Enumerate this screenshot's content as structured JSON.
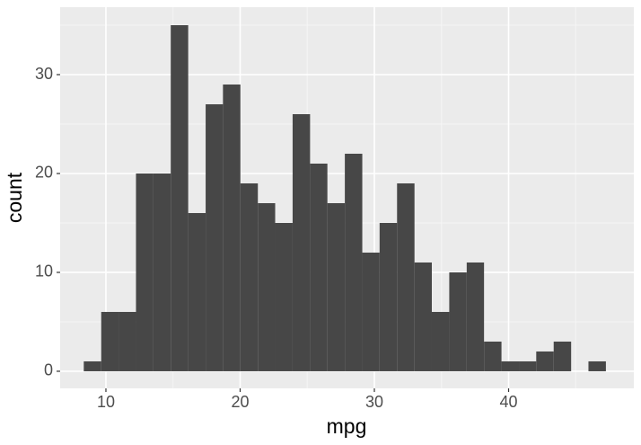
{
  "chart_data": {
    "type": "histogram",
    "x_label": "mpg",
    "y_label": "count",
    "bins": [
      8.35,
      9.65,
      10.94,
      12.24,
      13.54,
      14.83,
      16.13,
      17.43,
      18.72,
      20.02,
      21.32,
      22.61,
      23.91,
      25.21,
      26.5,
      27.8,
      29.1,
      30.39,
      31.69,
      32.99,
      34.28,
      35.58,
      36.88,
      38.17,
      39.47,
      40.77,
      42.06,
      43.36,
      44.66,
      45.95,
      47.25
    ],
    "values": [
      1,
      6,
      6,
      20,
      20,
      35,
      16,
      27,
      29,
      19,
      17,
      15,
      26,
      21,
      17,
      22,
      12,
      15,
      19,
      11,
      6,
      10,
      11,
      3,
      1,
      1,
      2,
      3,
      0,
      1
    ],
    "color": "#474747",
    "xlim": [
      6.59,
      49.33
    ],
    "xticks": [
      10,
      20,
      30,
      40
    ],
    "ylim": [
      -1.73,
      36.82
    ],
    "yticks": [
      0,
      10,
      20,
      30
    ],
    "grid": true
  }
}
